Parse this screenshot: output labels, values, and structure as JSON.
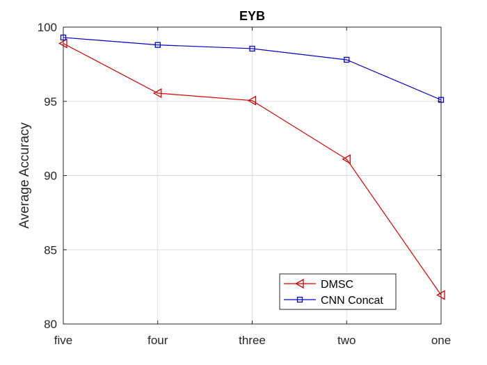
{
  "chart_data": {
    "type": "line",
    "title": "EYB",
    "xlabel": "",
    "ylabel": "Average Accuracy",
    "categories": [
      "five",
      "four",
      "three",
      "two",
      "one"
    ],
    "ylim": [
      80,
      100
    ],
    "yticks": [
      80,
      85,
      90,
      95,
      100
    ],
    "grid": true,
    "legend_position": "bottom-right",
    "series": [
      {
        "name": "DMSC",
        "values": [
          98.9,
          95.55,
          95.05,
          91.1,
          81.95
        ],
        "color": "#d40000",
        "marker": "triangle-left"
      },
      {
        "name": "CNN Concat",
        "values": [
          99.3,
          98.8,
          98.55,
          97.8,
          95.1
        ],
        "color": "#0000c8",
        "marker": "square"
      }
    ]
  }
}
